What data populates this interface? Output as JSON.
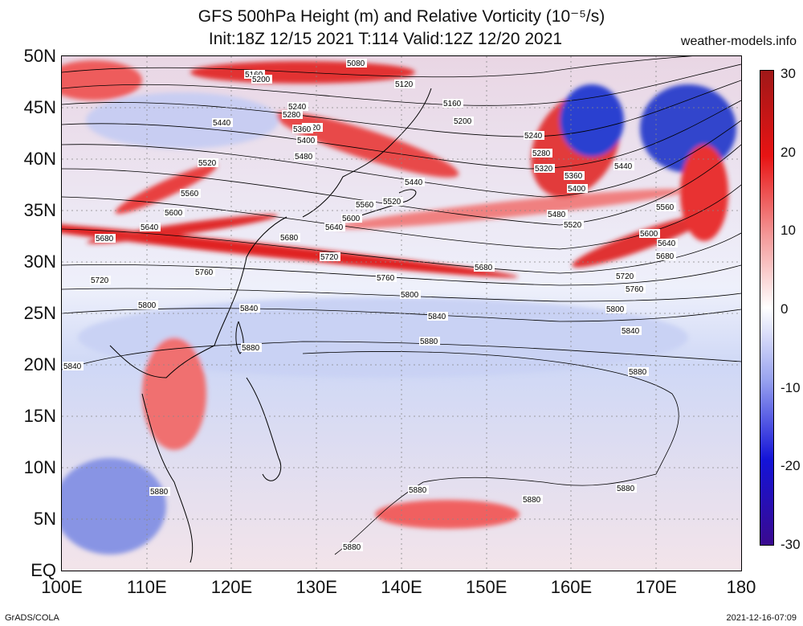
{
  "header": {
    "title_line1": "GFS 500hPa Height (m) and Relative Vorticity (10⁻⁵/s)",
    "title_line2": "Init:18Z 12/15 2021 T:114 Valid:12Z 12/20 2021",
    "site": "weather-models.info"
  },
  "map": {
    "lat_labels": [
      "50N",
      "45N",
      "40N",
      "35N",
      "30N",
      "25N",
      "20N",
      "15N",
      "10N",
      "5N",
      "EQ"
    ],
    "lon_labels": [
      "100E",
      "110E",
      "120E",
      "130E",
      "140E",
      "150E",
      "160E",
      "170E",
      "180"
    ],
    "height_labels": [
      "5080",
      "5120",
      "5160",
      "5200",
      "5240",
      "5280",
      "5320",
      "5360",
      "5400",
      "5440",
      "5480",
      "5520",
      "5560",
      "5600",
      "5640",
      "5680",
      "5720",
      "5760",
      "5800",
      "5840",
      "5880"
    ],
    "colors": {
      "positive": "#e01818",
      "negative": "#1a2fd8",
      "neutral": "#ffffff"
    }
  },
  "colorbar": {
    "ticks": [
      "30",
      "20",
      "10",
      "0",
      "-10",
      "-20",
      "-30"
    ]
  },
  "footer": {
    "left": "GrADS/COLA",
    "right": "2021-12-16-07:09"
  }
}
